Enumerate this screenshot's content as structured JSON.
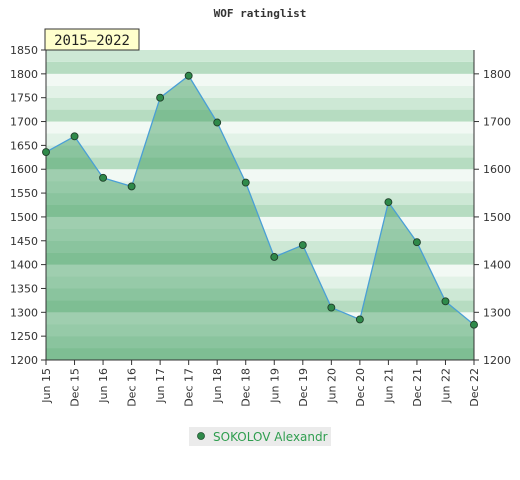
{
  "chart_data": {
    "type": "area",
    "title": "WOF ratinglist",
    "badge": "2015–2022",
    "categories": [
      "Jun 15",
      "Dec 15",
      "Jun 16",
      "Dec 16",
      "Jun 17",
      "Dec 17",
      "Jun 18",
      "Dec 18",
      "Jun 19",
      "Dec 19",
      "Jun 20",
      "Dec 20",
      "Jun 21",
      "Dec 21",
      "Jun 22",
      "Dec 22"
    ],
    "series": [
      {
        "name": "SOKOLOV Alexandr",
        "values": [
          1636,
          1669,
          1582,
          1564,
          1750,
          1796,
          1698,
          1572,
          1416,
          1441,
          1310,
          1285,
          1531,
          1447,
          1323,
          1274
        ]
      }
    ],
    "ylim": [
      1200,
      1850
    ],
    "y_ticks_left": [
      1200,
      1250,
      1300,
      1350,
      1400,
      1450,
      1500,
      1550,
      1600,
      1650,
      1700,
      1750,
      1800,
      1850
    ],
    "y_ticks_right": [
      1200,
      1300,
      1400,
      1500,
      1600,
      1700,
      1800
    ],
    "grid": "horizontal bands",
    "legend_position": "bottom-center",
    "colors": {
      "line": "#4a9fd6",
      "fill": "#3a9a5a",
      "marker": "#2f8a4a",
      "band_dark": "#b6dcc1",
      "band_light": "#f2f9f4",
      "badge_bg": "#ffffcc",
      "legend_bg": "#ebebeb"
    }
  }
}
